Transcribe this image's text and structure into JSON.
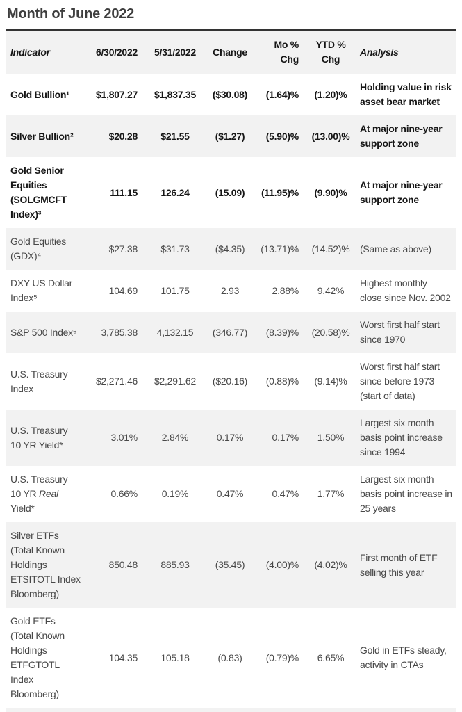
{
  "page_title": "Month of June 2022",
  "table": {
    "header": {
      "indicator": "Indicator",
      "jun_date": "6/30/2022",
      "may_date": "5/31/2022",
      "change": "Change",
      "mo_chg": "Mo %\nChg",
      "ytd_chg": "YTD %\nChg",
      "analysis": "Analysis"
    },
    "colors": {
      "header_bg": "#f2f2f2",
      "zebra_row_bg": "#f2f2f2",
      "row_bg": "#ffffff",
      "emphasis_text": "#161616",
      "regular_text": "#484848",
      "title_text": "#3e3e3e",
      "top_rule": "#333333"
    },
    "rows": [
      {
        "indicator": "Gold Bullion¹",
        "jun": "$1,807.27",
        "may": "$1,837.35",
        "change": "($30.08)",
        "mo_pct": "(1.64)%",
        "ytd_pct": "(1.20)%",
        "analysis": "Holding value in risk\nasset bear market"
      },
      {
        "indicator": "Silver Bullion²",
        "jun": "$20.28",
        "may": "$21.55",
        "change": "($1.27)",
        "mo_pct": "(5.90)%",
        "ytd_pct": "(13.00)%",
        "analysis": "At major nine-year\nsupport zone"
      },
      {
        "indicator": "Gold Senior\nEquities\n(SOLGMCFT\nIndex)³",
        "jun": "111.15",
        "may": "126.24",
        "change": "(15.09)",
        "mo_pct": "(11.95)%",
        "ytd_pct": "(9.90)%",
        "analysis": "At major nine-year\nsupport zone"
      },
      {
        "indicator": "Gold Equities\n(GDX)⁴",
        "jun": "$27.38",
        "may": "$31.73",
        "change": "($4.35)",
        "mo_pct": "(13.71)%",
        "ytd_pct": "(14.52)%",
        "analysis": "(Same as above)"
      },
      {
        "indicator": "DXY US Dollar\nIndex⁵",
        "jun": "104.69",
        "may": "101.75",
        "change": "2.93",
        "mo_pct": "2.88%",
        "ytd_pct": "9.42%",
        "analysis": "Highest monthly\nclose since Nov. 2002"
      },
      {
        "indicator": "S&P 500 Index⁶",
        "jun": "3,785.38",
        "may": "4,132.15",
        "change": "(346.77)",
        "mo_pct": "(8.39)%",
        "ytd_pct": "(20.58)%",
        "analysis": "Worst first half start\nsince 1970"
      },
      {
        "indicator": "U.S. Treasury\nIndex",
        "jun": "$2,271.46",
        "may": "$2,291.62",
        "change": "($20.16)",
        "mo_pct": "(0.88)%",
        "ytd_pct": "(9.14)%",
        "analysis": "Worst first half start\nsince before 1973\n(start of data)"
      },
      {
        "indicator": "U.S. Treasury\n10 YR Yield*",
        "jun": "3.01%",
        "may": "2.84%",
        "change": "0.17%",
        "mo_pct": "0.17%",
        "ytd_pct": "1.50%",
        "analysis": "Largest six month\nbasis point increase\nsince 1994"
      },
      {
        "indicator_pre": "U.S. Treasury\n10 YR ",
        "indicator_italic": "Real",
        "indicator_post": "\nYield*",
        "jun": "0.66%",
        "may": "0.19%",
        "change": "0.47%",
        "mo_pct": "0.47%",
        "ytd_pct": "1.77%",
        "analysis": "Largest six month\nbasis point increase in\n25 years"
      },
      {
        "indicator": "Silver ETFs\n(Total Known\nHoldings\nETSITOTL Index\nBloomberg)",
        "jun": "850.48",
        "may": "885.93",
        "change": "(35.45)",
        "mo_pct": "(4.00)%",
        "ytd_pct": "(4.02)%",
        "analysis": "First month of ETF\nselling this year"
      },
      {
        "indicator": "Gold ETFs\n(Total Known\nHoldings\nETFGTOTL\nIndex\nBloomberg)",
        "jun": "104.35",
        "may": "105.18",
        "change": "(0.83)",
        "mo_pct": "(0.79)%",
        "ytd_pct": "6.65%",
        "analysis": "Gold in ETFs steady,\nactivity in CTAs"
      }
    ]
  }
}
